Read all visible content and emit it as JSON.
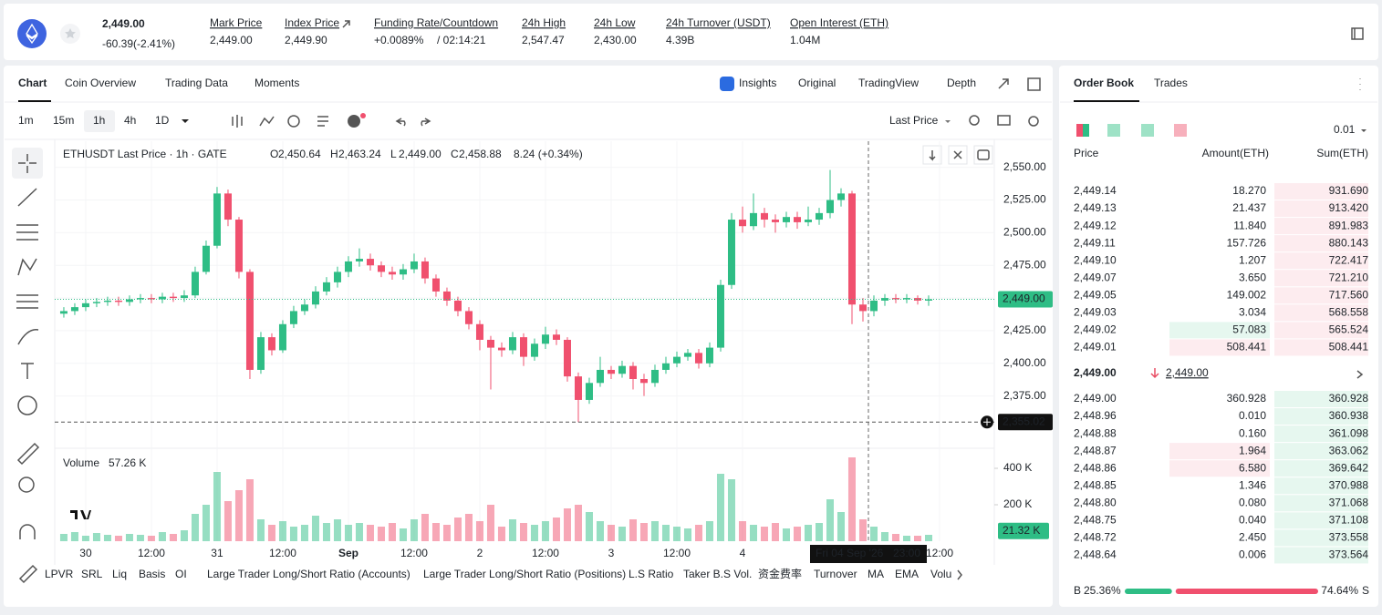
{
  "header": {
    "price": "2,449.00",
    "change": "-60.39(-2.41%)",
    "stats": [
      {
        "label": "Mark Price",
        "value": "2,449.00"
      },
      {
        "label": "Index Price",
        "value": "2,449.90"
      },
      {
        "label": "Funding Rate/Countdown",
        "value": "+0.0089%",
        "extra": "/ 02:14:21"
      },
      {
        "label": "24h High",
        "value": "2,547.47"
      },
      {
        "label": "24h Low",
        "value": "2,430.00"
      },
      {
        "label": "24h Turnover (USDT)",
        "value": "4.39B"
      },
      {
        "label": "Open Interest (ETH)",
        "value": "1.04M"
      }
    ]
  },
  "tabs": {
    "left": [
      "Chart",
      "Coin Overview",
      "Trading Data",
      "Moments"
    ],
    "right": [
      "Insights",
      "Original",
      "TradingView",
      "Depth"
    ]
  },
  "toolbar": {
    "intervals": [
      "1m",
      "15m",
      "1h",
      "4h",
      "1D"
    ],
    "price_type": "Last Price"
  },
  "chart_data": {
    "type": "candlestick",
    "title": "ETHUSDT Last Price · 1h · GATE",
    "legend": [
      {
        "key": "O",
        "value": "2,450.64"
      },
      {
        "key": "H",
        "value": "2,463.24"
      },
      {
        "key": "L",
        "value": "2,449.00"
      },
      {
        "key": "C",
        "value": "2,458.88"
      }
    ],
    "legend_change": "8.24 (+0.34%)",
    "up_color": "#2ebd85",
    "down_color": "#f0506e",
    "open": [
      2438,
      2440,
      2443,
      2446,
      2447,
      2448,
      2447,
      2449,
      2450,
      2449,
      2451,
      2450,
      2452,
      2470,
      2490,
      2530,
      2510,
      2470,
      2395,
      2420,
      2410,
      2430,
      2440,
      2445,
      2455,
      2462,
      2470,
      2478,
      2480,
      2475,
      2470,
      2468,
      2472,
      2478,
      2465,
      2455,
      2448,
      2440,
      2430,
      2418,
      2412,
      2410,
      2420,
      2405,
      2415,
      2422,
      2418,
      2390,
      2372,
      2385,
      2395,
      2392,
      2398,
      2388,
      2385,
      2395,
      2400,
      2405,
      2408,
      2400,
      2412,
      2460,
      2510,
      2505,
      2515,
      2510,
      2508,
      2512,
      2508,
      2510,
      2515,
      2525,
      2530,
      2445,
      2440,
      2448,
      2450,
      2449,
      2450,
      2448
    ],
    "high": [
      2443,
      2446,
      2449,
      2450,
      2451,
      2451,
      2452,
      2453,
      2453,
      2454,
      2454,
      2456,
      2474,
      2494,
      2535,
      2533,
      2512,
      2472,
      2424,
      2423,
      2433,
      2444,
      2449,
      2459,
      2466,
      2474,
      2482,
      2488,
      2484,
      2478,
      2474,
      2476,
      2484,
      2481,
      2468,
      2458,
      2451,
      2443,
      2433,
      2421,
      2416,
      2424,
      2423,
      2419,
      2428,
      2426,
      2420,
      2393,
      2389,
      2405,
      2398,
      2402,
      2401,
      2392,
      2399,
      2405,
      2409,
      2411,
      2411,
      2416,
      2464,
      2515,
      2520,
      2530,
      2519,
      2514,
      2516,
      2516,
      2520,
      2519,
      2548,
      2534,
      2532,
      2450,
      2452,
      2453,
      2453,
      2453,
      2452,
      2452
    ],
    "low": [
      2435,
      2437,
      2440,
      2443,
      2444,
      2444,
      2444,
      2446,
      2446,
      2446,
      2447,
      2447,
      2450,
      2468,
      2488,
      2505,
      2465,
      2388,
      2392,
      2406,
      2408,
      2427,
      2437,
      2442,
      2452,
      2458,
      2466,
      2474,
      2471,
      2466,
      2464,
      2464,
      2469,
      2461,
      2451,
      2444,
      2436,
      2426,
      2410,
      2380,
      2405,
      2407,
      2398,
      2402,
      2411,
      2414,
      2386,
      2355,
      2369,
      2382,
      2388,
      2389,
      2380,
      2375,
      2382,
      2392,
      2397,
      2402,
      2396,
      2397,
      2409,
      2457,
      2500,
      2502,
      2504,
      2500,
      2504,
      2503,
      2505,
      2506,
      2511,
      2520,
      2430,
      2432,
      2436,
      2444,
      2446,
      2446,
      2445,
      2444
    ],
    "close": [
      2440,
      2443,
      2446,
      2447,
      2448,
      2447,
      2449,
      2450,
      2449,
      2451,
      2450,
      2452,
      2470,
      2490,
      2530,
      2510,
      2470,
      2395,
      2420,
      2410,
      2430,
      2440,
      2445,
      2455,
      2462,
      2470,
      2478,
      2480,
      2475,
      2470,
      2468,
      2472,
      2478,
      2465,
      2455,
      2448,
      2440,
      2430,
      2418,
      2412,
      2410,
      2420,
      2405,
      2415,
      2422,
      2418,
      2390,
      2372,
      2385,
      2395,
      2392,
      2398,
      2388,
      2385,
      2395,
      2400,
      2405,
      2408,
      2400,
      2412,
      2460,
      2510,
      2505,
      2515,
      2510,
      2508,
      2512,
      2508,
      2510,
      2515,
      2525,
      2530,
      2445,
      2440,
      2448,
      2450,
      2449,
      2450,
      2448,
      2449
    ],
    "volume": [
      40000,
      50000,
      30000,
      45000,
      35000,
      30000,
      40000,
      35000,
      30000,
      50000,
      40000,
      60000,
      150000,
      200000,
      380000,
      220000,
      280000,
      340000,
      120000,
      90000,
      110000,
      80000,
      90000,
      140000,
      100000,
      120000,
      90000,
      100000,
      90000,
      80000,
      100000,
      70000,
      120000,
      150000,
      100000,
      90000,
      130000,
      150000,
      110000,
      200000,
      80000,
      120000,
      100000,
      90000,
      110000,
      130000,
      180000,
      200000,
      160000,
      110000,
      90000,
      80000,
      120000,
      100000,
      110000,
      90000,
      80000,
      70000,
      90000,
      110000,
      370000,
      340000,
      110000,
      90000,
      80000,
      100000,
      70000,
      80000,
      90000,
      100000,
      230000,
      160000,
      460000,
      120000,
      80000,
      50000,
      40000,
      30000,
      30000,
      35000
    ],
    "xlim": [
      -0.83,
      85
    ],
    "xticks": [
      {
        "value": 2,
        "label": "30"
      },
      {
        "value": 8,
        "label": "12:00"
      },
      {
        "value": 14,
        "label": "31"
      },
      {
        "value": 20,
        "label": "12:00"
      },
      {
        "value": 26,
        "label": "Sep"
      },
      {
        "value": 32,
        "label": "12:00"
      },
      {
        "value": 38,
        "label": "2"
      },
      {
        "value": 44,
        "label": "12:00"
      },
      {
        "value": 50,
        "label": "3"
      },
      {
        "value": 56,
        "label": "12:00"
      },
      {
        "value": 62,
        "label": "4"
      },
      {
        "value": 80,
        "label": "12:00"
      }
    ],
    "ylim": [
      2335,
      2570
    ],
    "yticks": [
      {
        "value": 2375,
        "label": "2,375.00"
      },
      {
        "value": 2400,
        "label": "2,400.00"
      },
      {
        "value": 2425,
        "label": "2,425.00"
      },
      {
        "value": 2450,
        "label": "2,450.00"
      },
      {
        "value": 2475,
        "label": "2,475.00"
      },
      {
        "value": 2500,
        "label": "2,500.00"
      },
      {
        "value": 2525,
        "label": "2,525.00"
      },
      {
        "value": 2550,
        "label": "2,550.00"
      }
    ],
    "last_price": {
      "value": 2449,
      "label": "2,449.00"
    },
    "low_marker": {
      "value": 2355.02,
      "label": "2,355.02"
    },
    "crosshair": {
      "x": 73.5,
      "date": "Fri 04 Sep '26",
      "time": "23:00"
    },
    "volume_title": "Volume",
    "volume_value": "57.26 K",
    "volume_ylim": [
      0,
      470000
    ],
    "volume_yticks": [
      {
        "value": 200000,
        "label": "200 K"
      },
      {
        "value": 400000,
        "label": "400 K"
      }
    ],
    "volume_last": {
      "value": 21320,
      "label": "21.32 K"
    }
  },
  "indicators": [
    "LPVR",
    "SRL",
    "Liq",
    "Basis",
    "OI",
    "Large Trader Long/Short Ratio (Accounts)",
    "Large Trader Long/Short Ratio (Positions)",
    "L.S Ratio",
    "Taker B.S Vol.",
    "资金费率",
    "Turnover",
    "MA",
    "EMA",
    "Volu"
  ],
  "order_book": {
    "tabs": [
      "Order Book",
      "Trades"
    ],
    "precision": "0.01",
    "columns": [
      "Price",
      "Amount(ETH)",
      "Sum(ETH)"
    ],
    "asks": [
      [
        "2,449.14",
        "18.270",
        "931.690"
      ],
      [
        "2,449.13",
        "21.437",
        "913.420"
      ],
      [
        "2,449.12",
        "11.840",
        "891.983"
      ],
      [
        "2,449.11",
        "157.726",
        "880.143"
      ],
      [
        "2,449.10",
        "1.207",
        "722.417"
      ],
      [
        "2,449.07",
        "3.650",
        "721.210"
      ],
      [
        "2,449.05",
        "149.002",
        "717.560"
      ],
      [
        "2,449.03",
        "3.034",
        "568.558"
      ],
      [
        "2,449.02",
        "57.083",
        "565.524"
      ],
      [
        "2,449.01",
        "508.441",
        "508.441"
      ]
    ],
    "mid_price": "2,449.00",
    "mark_price": "2,449.00",
    "bids": [
      [
        "2,449.00",
        "360.928",
        "360.928"
      ],
      [
        "2,448.96",
        "0.010",
        "360.938"
      ],
      [
        "2,448.88",
        "0.160",
        "361.098"
      ],
      [
        "2,448.87",
        "1.964",
        "363.062"
      ],
      [
        "2,448.86",
        "6.580",
        "369.642"
      ],
      [
        "2,448.85",
        "1.346",
        "370.988"
      ],
      [
        "2,448.80",
        "0.080",
        "371.068"
      ],
      [
        "2,448.75",
        "0.040",
        "371.108"
      ],
      [
        "2,448.72",
        "2.450",
        "373.558"
      ],
      [
        "2,448.64",
        "0.006",
        "373.564"
      ]
    ],
    "buy_letter": "B",
    "sell_letter": "S",
    "buy": {
      "value": 25.36,
      "label": "25.36%"
    },
    "sell": {
      "value": 74.64,
      "label": "74.64%"
    }
  }
}
